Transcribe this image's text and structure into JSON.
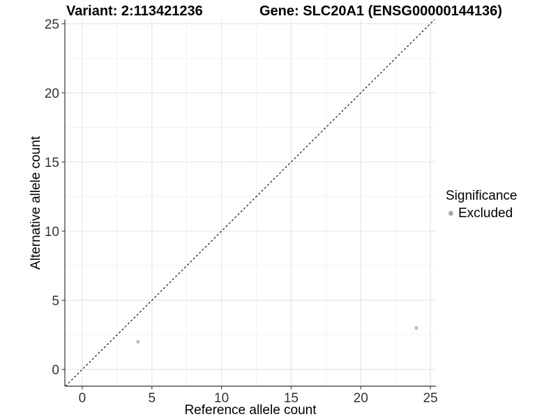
{
  "figure": {
    "title_left": "Variant: 2:113421236",
    "title_right": "Gene: SLC20A1 (ENSG00000144136)"
  },
  "chart_data": {
    "type": "scatter",
    "title_left": "Variant: 2:113421236",
    "title_right": "Gene: SLC20A1 (ENSG00000144136)",
    "xlabel": "Reference allele count",
    "ylabel": "Alternative allele count",
    "xlim": [
      -1.25,
      25.4
    ],
    "ylim": [
      -1.21,
      25.3
    ],
    "x_ticks": [
      0,
      5,
      10,
      15,
      20,
      25
    ],
    "y_ticks": [
      0,
      5,
      10,
      15,
      20,
      25
    ],
    "x_minor_ticks": [
      2.5,
      7.5,
      12.5,
      17.5,
      22.5
    ],
    "y_minor_ticks": [
      2.5,
      7.5,
      12.5,
      17.5,
      22.5
    ],
    "grid": "major and minor, light grey, white panel",
    "series": [
      {
        "name": "Excluded",
        "color": "#bebebe",
        "points": [
          {
            "x": 4,
            "y": 2
          },
          {
            "x": 24,
            "y": 3
          }
        ]
      }
    ],
    "reference_line": {
      "equation": "y = x",
      "style": "dashed",
      "color": "#000000"
    },
    "legend": {
      "title": "Significance",
      "position": "right",
      "entries": [
        {
          "label": "Excluded",
          "color": "#a9a9a9"
        }
      ]
    },
    "colors": {
      "major_grid": "#e4e4e4",
      "minor_grid": "#f1f1f1",
      "axis_line": "#333333",
      "tick_mark": "#333333",
      "tick_label": "#333333",
      "point": "#bebebe",
      "legend_dot": "#a9a9a9",
      "reference_line": "#000000"
    }
  }
}
